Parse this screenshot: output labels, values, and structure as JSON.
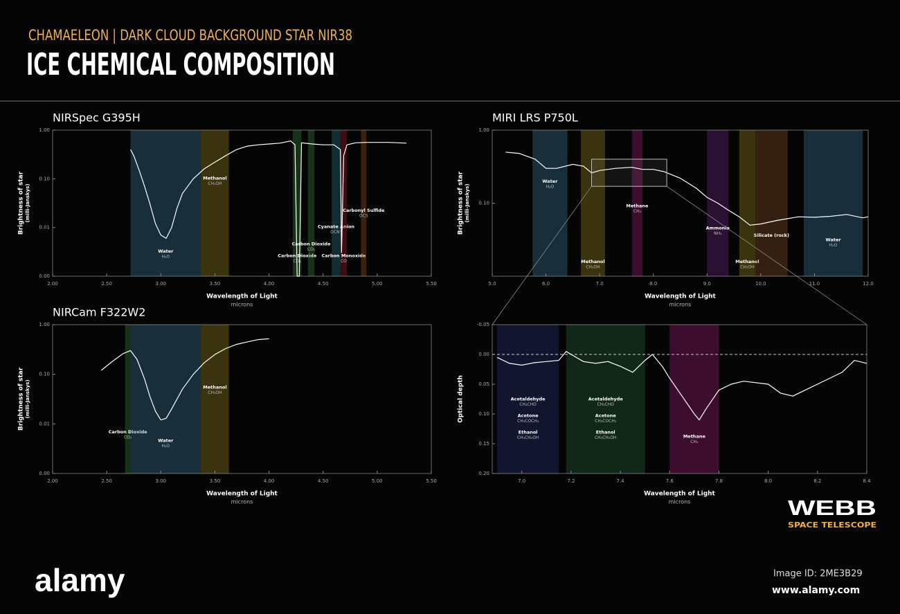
{
  "header": {
    "subtitle": "CHAMAELEON | DARK CLOUD BACKGROUND STAR NIR38",
    "title": "ICE CHEMICAL COMPOSITION"
  },
  "chart_data": [
    {
      "type": "line",
      "title": "NIRSpec G395H",
      "y_label": "Brightness of star",
      "y_unit": "(milli-Janskys)",
      "x_label": "Wavelength of Light",
      "x_unit": "microns",
      "color": "#ffffff",
      "log_y": true,
      "x": [
        2.72,
        2.75,
        2.8,
        2.85,
        2.9,
        2.95,
        3.0,
        3.05,
        3.1,
        3.15,
        3.2,
        3.3,
        3.4,
        3.5,
        3.6,
        3.7,
        3.8,
        3.9,
        4.0,
        4.1,
        4.2,
        4.24,
        4.26,
        4.28,
        4.3,
        4.4,
        4.5,
        4.6,
        4.66,
        4.67,
        4.69,
        4.72,
        4.8,
        4.9,
        5.0,
        5.1,
        5.2,
        5.27
      ],
      "values": [
        0.4,
        0.3,
        0.15,
        0.07,
        0.03,
        0.012,
        0.007,
        0.006,
        0.01,
        0.025,
        0.05,
        0.1,
        0.16,
        0.22,
        0.3,
        0.4,
        0.47,
        0.5,
        0.52,
        0.54,
        0.6,
        0.5,
        0.001,
        0.001,
        0.55,
        0.52,
        0.5,
        0.5,
        0.4,
        0.003,
        0.3,
        0.5,
        0.55,
        0.56,
        0.56,
        0.56,
        0.55,
        0.54
      ],
      "xlim": [
        2.0,
        5.5
      ],
      "ylim": [
        0.001,
        1
      ],
      "xticks": [
        {
          "value": 2,
          "label": "2.00"
        },
        {
          "value": 2.5,
          "label": "2.50"
        },
        {
          "value": 3,
          "label": "3.00"
        },
        {
          "value": 3.5,
          "label": "3.50"
        },
        {
          "value": 4,
          "label": "4.00"
        },
        {
          "value": 4.5,
          "label": "4.50"
        },
        {
          "value": 5,
          "label": "5.00"
        },
        {
          "value": 5.5,
          "label": "5.50"
        }
      ],
      "yticks": [
        {
          "value": 0.001,
          "label": "0.00"
        },
        0.01,
        {
          "value": 0.1,
          "label": "0.10"
        },
        {
          "value": 1,
          "label": "1.00"
        }
      ],
      "bands": [
        {
          "x": [
            2.72,
            3.37
          ],
          "color": "#4a90b8",
          "labels": [
            {
              "name": "Water",
              "formula": "H₂O"
            }
          ]
        },
        {
          "x": [
            3.37,
            3.63
          ],
          "color": "#b8a020",
          "labels": [
            {
              "name": "Methanol",
              "formula": "CH₃OH"
            }
          ]
        },
        {
          "x": [
            4.22,
            4.3
          ],
          "color": "#40a040",
          "labels": [
            {
              "name": "Carbon Dioxide",
              "formula": "CO₂"
            }
          ]
        },
        {
          "x": [
            4.36,
            4.42
          ],
          "color": "#40a040",
          "labels": [
            {
              "name": "Carbon Dioxide",
              "formula": "CO₂"
            }
          ]
        },
        {
          "x": [
            4.58,
            4.66
          ],
          "color": "#3090a0",
          "labels": [
            {
              "name": "Cyanate Anion",
              "formula": "OCN⁻"
            }
          ]
        },
        {
          "x": [
            4.66,
            4.72
          ],
          "color": "#c02040",
          "labels": [
            {
              "name": "Carbon Monoxide",
              "formula": "CO"
            }
          ]
        },
        {
          "x": [
            4.85,
            4.9
          ],
          "color": "#c06020",
          "labels": [
            {
              "name": "Carbonyl Sulfide",
              "formula": "OCS"
            }
          ]
        }
      ]
    },
    {
      "type": "line",
      "title": "NIRCam F322W2",
      "y_label": "Brightness of star",
      "y_unit": "(milli-Janskys)",
      "x_label": "Wavelength of Light",
      "x_unit": "microns",
      "color": "#ffffff",
      "log_y": true,
      "x": [
        2.45,
        2.55,
        2.65,
        2.72,
        2.78,
        2.85,
        2.9,
        2.95,
        3.0,
        3.05,
        3.1,
        3.2,
        3.3,
        3.4,
        3.5,
        3.6,
        3.7,
        3.8,
        3.9,
        4.0
      ],
      "values": [
        0.12,
        0.18,
        0.26,
        0.3,
        0.2,
        0.08,
        0.035,
        0.018,
        0.012,
        0.013,
        0.02,
        0.05,
        0.1,
        0.17,
        0.25,
        0.33,
        0.4,
        0.45,
        0.5,
        0.52
      ],
      "xlim": [
        2.0,
        5.5
      ],
      "ylim": [
        0.001,
        1
      ],
      "xticks": [
        {
          "value": 2,
          "label": "2.00"
        },
        {
          "value": 2.5,
          "label": "2.50"
        },
        {
          "value": 3,
          "label": "3.00"
        },
        {
          "value": 3.5,
          "label": "3.50"
        },
        {
          "value": 4,
          "label": "4.00"
        },
        {
          "value": 4.5,
          "label": "4.50"
        },
        {
          "value": 5,
          "label": "5.00"
        },
        {
          "value": 5.5,
          "label": "5.50"
        }
      ],
      "yticks": [
        {
          "value": 0.001,
          "label": "0.00"
        },
        0.01,
        {
          "value": 0.1,
          "label": "0.10"
        },
        {
          "value": 1,
          "label": "1.00"
        }
      ],
      "bands": [
        {
          "x": [
            2.67,
            2.72
          ],
          "color": "#40a040",
          "labels": [
            {
              "name": "Carbon Dioxide",
              "formula": "CO₂"
            }
          ]
        },
        {
          "x": [
            2.72,
            3.37
          ],
          "color": "#4a90b8",
          "labels": [
            {
              "name": "Water",
              "formula": "H₂O"
            }
          ]
        },
        {
          "x": [
            3.37,
            3.63
          ],
          "color": "#b8a020",
          "labels": [
            {
              "name": "Methanol",
              "formula": "CH₃OH"
            }
          ]
        }
      ]
    },
    {
      "type": "line",
      "title": "MIRI LRS P750L",
      "y_label": "Brightness of star",
      "y_unit": "(milli-Janskys)",
      "x_label": "Wavelength of Light",
      "x_unit": "microns",
      "color": "#ffffff",
      "log_y": true,
      "x": [
        5.25,
        5.5,
        5.8,
        6.0,
        6.2,
        6.5,
        6.7,
        6.85,
        7.0,
        7.3,
        7.6,
        7.8,
        8.0,
        8.2,
        8.5,
        8.8,
        9.0,
        9.2,
        9.4,
        9.6,
        9.8,
        10.0,
        10.3,
        10.7,
        11.0,
        11.3,
        11.6,
        11.9,
        12.0
      ],
      "values": [
        0.5,
        0.48,
        0.4,
        0.3,
        0.3,
        0.34,
        0.32,
        0.26,
        0.28,
        0.3,
        0.31,
        0.29,
        0.29,
        0.27,
        0.22,
        0.16,
        0.12,
        0.1,
        0.08,
        0.065,
        0.05,
        0.052,
        0.058,
        0.065,
        0.064,
        0.066,
        0.07,
        0.063,
        0.065
      ],
      "xlim": [
        5.0,
        12.0
      ],
      "ylim": [
        0.01,
        1
      ],
      "xticks": [
        {
          "value": 5,
          "label": "5.0"
        },
        {
          "value": 6,
          "label": "6.0"
        },
        {
          "value": 7,
          "label": "7.0"
        },
        {
          "value": 8,
          "label": "8.0"
        },
        {
          "value": 9,
          "label": "9.0"
        },
        {
          "value": 10,
          "label": "10.0"
        },
        {
          "value": 11,
          "label": "11.0"
        },
        {
          "value": 12,
          "label": "12.0"
        }
      ],
      "yticks": [
        {
          "value": 0.1,
          "label": "0.10"
        },
        {
          "value": 1,
          "label": "1.00"
        }
      ],
      "zoom": {
        "x": [
          6.85,
          8.25
        ],
        "y": [
          0.17,
          0.4
        ]
      },
      "bands": [
        {
          "x": [
            5.75,
            6.4
          ],
          "color": "#4a90b8",
          "labels": [
            {
              "name": "Water",
              "formula": "H₂O"
            }
          ]
        },
        {
          "x": [
            6.65,
            7.1
          ],
          "color": "#b8a020",
          "labels": [
            {
              "name": "Methanol",
              "formula": "CH₃OH"
            }
          ]
        },
        {
          "x": [
            7.6,
            7.8
          ],
          "color": "#c02090",
          "labels": [
            {
              "name": "Methane",
              "formula": "CH₄"
            }
          ]
        },
        {
          "x": [
            9.0,
            9.4
          ],
          "color": "#8030a0",
          "labels": [
            {
              "name": "Ammonia",
              "formula": "NH₃"
            }
          ]
        },
        {
          "x": [
            9.6,
            9.9
          ],
          "color": "#b8a020",
          "labels": [
            {
              "name": "Methanol",
              "formula": "CH₃OH"
            }
          ]
        },
        {
          "x": [
            9.9,
            10.5
          ],
          "color": "#a06030",
          "labels": [
            {
              "name": "Silicate (rock)"
            }
          ]
        },
        {
          "x": [
            10.8,
            11.9
          ],
          "color": "#4a90b8",
          "labels": [
            {
              "name": "Water",
              "formula": "H₂O"
            }
          ]
        }
      ]
    },
    {
      "type": "line",
      "y_label": "Optical depth",
      "x_label": "Wavelength of Light",
      "x_unit": "microns",
      "color": "#ffffff",
      "log_y": false,
      "x": [
        6.9,
        6.95,
        7.0,
        7.05,
        7.1,
        7.15,
        7.18,
        7.2,
        7.25,
        7.3,
        7.35,
        7.4,
        7.45,
        7.5,
        7.53,
        7.57,
        7.6,
        7.65,
        7.7,
        7.72,
        7.75,
        7.8,
        7.85,
        7.9,
        8.0,
        8.05,
        8.1,
        8.15,
        8.2,
        8.3,
        8.35,
        8.4
      ],
      "values": [
        0.005,
        0.015,
        0.018,
        0.014,
        0.012,
        0.01,
        -0.005,
        0.0,
        0.012,
        0.015,
        0.012,
        0.02,
        0.03,
        0.01,
        0.0,
        0.02,
        0.04,
        0.07,
        0.1,
        0.11,
        0.09,
        0.06,
        0.05,
        0.045,
        0.05,
        0.065,
        0.07,
        0.06,
        0.05,
        0.03,
        0.01,
        0.015
      ],
      "xlim": [
        6.88,
        8.4
      ],
      "ylim": [
        0.2,
        -0.05
      ],
      "reference_line": 0,
      "xticks": [
        {
          "value": 7,
          "label": "7.0"
        },
        7.2,
        7.4,
        7.6,
        7.8,
        {
          "value": 8,
          "label": "8.0"
        },
        8.2,
        8.4
      ],
      "yticks": [
        -0.05,
        {
          "value": 0,
          "label": "0.00"
        },
        0.05,
        {
          "value": 0.1,
          "label": "0.10"
        },
        0.15,
        {
          "value": 0.2,
          "label": "0.20"
        }
      ],
      "bands": [
        {
          "x": [
            6.9,
            7.15
          ],
          "color": "#304090",
          "labels": [
            {
              "name": "Acetaldehyde",
              "formula": "CH₃CHO"
            },
            {
              "name": "Acetone",
              "formula": "CH₃COCH₃"
            },
            {
              "name": "Ethanol",
              "formula": "CH₃CH₂OH"
            }
          ]
        },
        {
          "x": [
            7.18,
            7.5
          ],
          "color": "#2d7b4a",
          "labels": [
            {
              "name": "Acetaldehyde",
              "formula": "CH₃CHO"
            },
            {
              "name": "Acetone",
              "formula": "CH₃COCH₃"
            },
            {
              "name": "Ethanol",
              "formula": "CH₃CH₂OH"
            }
          ]
        },
        {
          "x": [
            7.6,
            7.8
          ],
          "color": "#c02090",
          "labels": [
            {
              "name": "Methane",
              "formula": "CH₄"
            }
          ]
        }
      ]
    }
  ],
  "logo": {
    "name": "WEBB",
    "subtitle": "SPACE TELESCOPE"
  },
  "footer": {
    "brand": "alamy",
    "image_id": "Image ID: 2ME3B29",
    "url": "www.alamy.com"
  }
}
